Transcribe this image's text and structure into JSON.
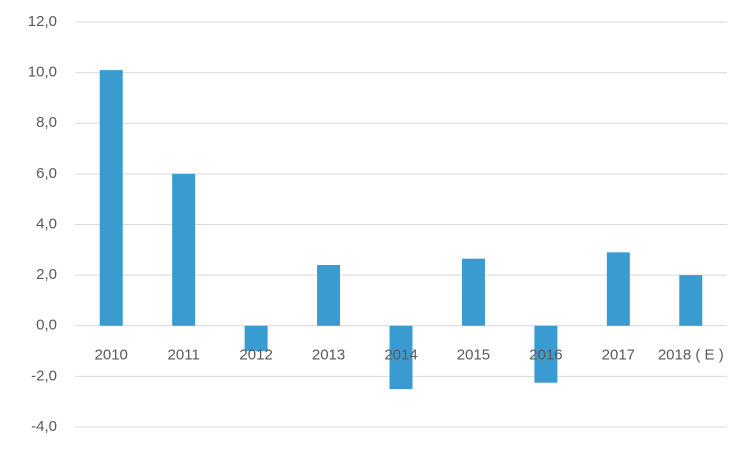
{
  "chart_data": {
    "type": "bar",
    "categories": [
      "2010",
      "2011",
      "2012",
      "2013",
      "2014",
      "2015",
      "2016",
      "2017",
      "2018 ( E )"
    ],
    "values": [
      10.1,
      6.0,
      -1.0,
      2.4,
      -2.5,
      2.65,
      -2.25,
      2.9,
      2.0
    ],
    "color": "#3a9bd0",
    "ylim": [
      -4,
      12
    ],
    "yticks": [
      {
        "value": -4,
        "label": "-4,0"
      },
      {
        "value": -2,
        "label": "-2,0"
      },
      {
        "value": 0,
        "label": "0,0"
      },
      {
        "value": 2,
        "label": "2,0"
      },
      {
        "value": 4,
        "label": "4,0"
      },
      {
        "value": 6,
        "label": "6,0"
      },
      {
        "value": 8,
        "label": "8,0"
      },
      {
        "value": 10,
        "label": "10,0"
      },
      {
        "value": 12,
        "label": "12,0"
      }
    ],
    "grid": true
  }
}
